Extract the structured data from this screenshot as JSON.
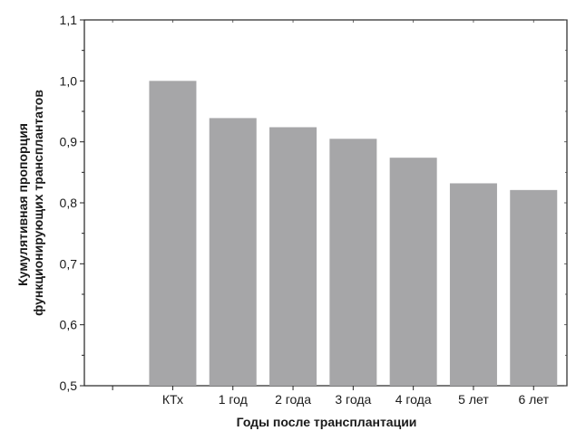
{
  "chart_data": {
    "type": "bar",
    "title": "",
    "xlabel": "Годы после трансплантации",
    "ylabel_lines": [
      "Кумулятивная пропорция",
      "функционирующих трансплантатов"
    ],
    "ylim": [
      0.5,
      1.1
    ],
    "yticks": [
      0.5,
      0.6,
      0.7,
      0.8,
      0.9,
      1.0,
      1.1
    ],
    "ytick_labels": [
      "0,5",
      "0,6",
      "0,7",
      "0,8",
      "0,9",
      "1,0",
      "1,1"
    ],
    "categories": [
      "КТх",
      "1 год",
      "2 года",
      "3 года",
      "4 года",
      "5 лет",
      "6 лет"
    ],
    "values": [
      1.0,
      0.939,
      0.924,
      0.905,
      0.874,
      0.832,
      0.821
    ],
    "bar_color": "#a6a6a8",
    "grid": false
  }
}
